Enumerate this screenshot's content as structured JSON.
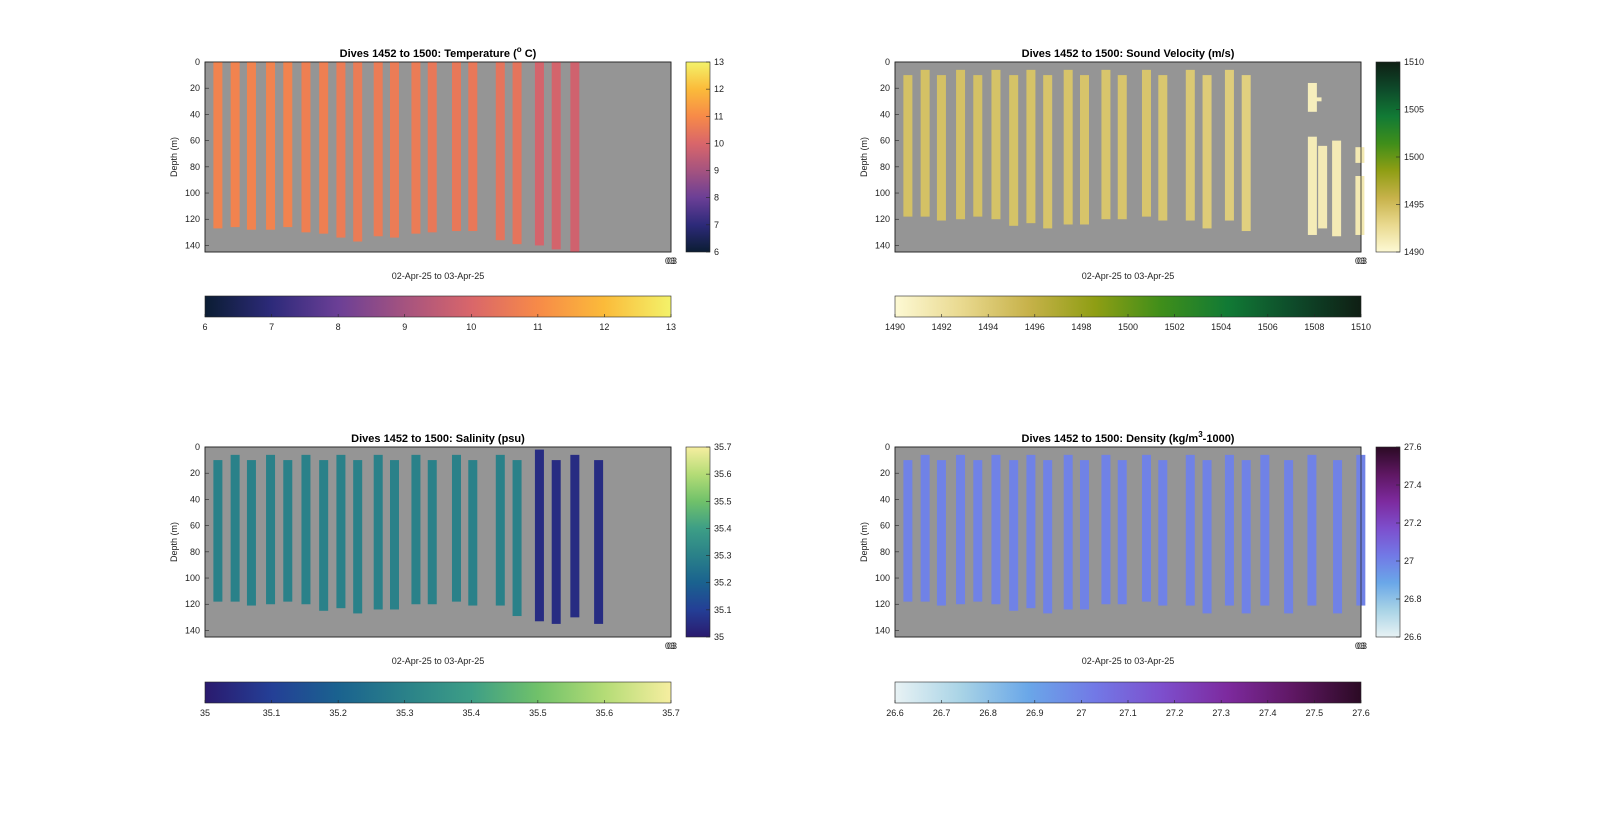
{
  "chart_data": [
    {
      "type": "heatmap",
      "title": "Dives 1452 to 1500: Temperature (",
      "title_sup": "o",
      "title_end": " C)",
      "xlabel": "02-Apr-25 to 03-Apr-25",
      "ylabel": "Depth (m)",
      "ylim": [
        0,
        145
      ],
      "yticks": [
        0,
        20,
        40,
        60,
        80,
        100,
        120,
        140
      ],
      "x_end_tick": "03",
      "cbar_right": {
        "ticks": [
          6,
          7,
          8,
          9,
          10,
          11,
          12,
          13
        ],
        "labels": [
          "6",
          "7",
          "8",
          "9",
          "10",
          "11",
          "12",
          "13"
        ]
      },
      "cbar_bottom": {
        "ticks": [
          6,
          7,
          8,
          9,
          10,
          11,
          12,
          13
        ],
        "labels": [
          "6",
          "7",
          "8",
          "9",
          "10",
          "11",
          "12",
          "13"
        ]
      },
      "clim": [
        6,
        13
      ],
      "colormap": [
        "#0b1d33",
        "#2d2a7a",
        "#6b3f96",
        "#a5537f",
        "#d9666a",
        "#f78a48",
        "#fbbb3a",
        "#f3f26a"
      ],
      "background_color": "#959595",
      "casts": [
        {
          "t": 0.018,
          "top": 0,
          "bottom": 127,
          "value": 10.8
        },
        {
          "t": 0.055,
          "top": 0,
          "bottom": 126,
          "value": 10.8
        },
        {
          "t": 0.09,
          "top": 0,
          "bottom": 128,
          "value": 10.8
        },
        {
          "t": 0.131,
          "top": 0,
          "bottom": 128,
          "value": 10.8
        },
        {
          "t": 0.168,
          "top": 0,
          "bottom": 126,
          "value": 10.8
        },
        {
          "t": 0.207,
          "top": 0,
          "bottom": 130,
          "value": 10.7
        },
        {
          "t": 0.245,
          "top": 0,
          "bottom": 131,
          "value": 10.7
        },
        {
          "t": 0.282,
          "top": 0,
          "bottom": 134,
          "value": 10.6
        },
        {
          "t": 0.318,
          "top": 0,
          "bottom": 137,
          "value": 10.6
        },
        {
          "t": 0.362,
          "top": 0,
          "bottom": 133,
          "value": 10.6
        },
        {
          "t": 0.397,
          "top": 0,
          "bottom": 134,
          "value": 10.6
        },
        {
          "t": 0.443,
          "top": 0,
          "bottom": 131,
          "value": 10.6
        },
        {
          "t": 0.478,
          "top": 0,
          "bottom": 130,
          "value": 10.5
        },
        {
          "t": 0.53,
          "top": 0,
          "bottom": 129,
          "value": 10.5
        },
        {
          "t": 0.565,
          "top": 0,
          "bottom": 129,
          "value": 10.5
        },
        {
          "t": 0.624,
          "top": 0,
          "bottom": 136,
          "value": 10.4
        },
        {
          "t": 0.66,
          "top": 0,
          "bottom": 139,
          "value": 10.4
        },
        {
          "t": 0.708,
          "top": 0,
          "bottom": 140,
          "value": 9.9
        },
        {
          "t": 0.744,
          "top": 0,
          "bottom": 143,
          "value": 9.9
        },
        {
          "t": 0.784,
          "top": 0,
          "bottom": 145,
          "value": 9.8
        }
      ]
    },
    {
      "type": "heatmap",
      "title": "Dives 1452 to 1500: Sound Velocity (m/s)",
      "xlabel": "02-Apr-25 to 03-Apr-25",
      "ylabel": "Depth (m)",
      "ylim": [
        0,
        145
      ],
      "yticks": [
        0,
        20,
        40,
        60,
        80,
        100,
        120,
        140
      ],
      "x_end_tick": "03",
      "cbar_right": {
        "ticks": [
          1490,
          1495,
          1500,
          1505,
          1510
        ],
        "labels": [
          "1490",
          "1495",
          "1500",
          "1505",
          "1510"
        ]
      },
      "cbar_bottom": {
        "ticks": [
          1490,
          1492,
          1494,
          1496,
          1498,
          1500,
          1502,
          1504,
          1506,
          1508,
          1510
        ],
        "labels": [
          "1490",
          "1492",
          "1494",
          "1496",
          "1498",
          "1500",
          "1502",
          "1504",
          "1506",
          "1508",
          "1510"
        ]
      },
      "clim": [
        1490,
        1510
      ],
      "colormap": [
        "#fdf9d4",
        "#e9d98f",
        "#c7b24a",
        "#8f9e14",
        "#3f8e1a",
        "#117a35",
        "#0e4a2a",
        "#0f1f14"
      ],
      "background_color": "#959595",
      "casts": [
        {
          "t": 0.018,
          "top": 10,
          "bottom": 118,
          "value": 1494.6
        },
        {
          "t": 0.055,
          "top": 6,
          "bottom": 118,
          "value": 1494.6
        },
        {
          "t": 0.09,
          "top": 10,
          "bottom": 121,
          "value": 1494.6
        },
        {
          "t": 0.131,
          "top": 6,
          "bottom": 120,
          "value": 1494.6
        },
        {
          "t": 0.168,
          "top": 10,
          "bottom": 118,
          "value": 1494.6
        },
        {
          "t": 0.207,
          "top": 6,
          "bottom": 120,
          "value": 1494.5
        },
        {
          "t": 0.245,
          "top": 10,
          "bottom": 125,
          "value": 1494.5
        },
        {
          "t": 0.282,
          "top": 6,
          "bottom": 123,
          "value": 1494.5
        },
        {
          "t": 0.318,
          "top": 10,
          "bottom": 127,
          "value": 1494.4
        },
        {
          "t": 0.362,
          "top": 6,
          "bottom": 124,
          "value": 1494.4
        },
        {
          "t": 0.397,
          "top": 10,
          "bottom": 124,
          "value": 1494.4
        },
        {
          "t": 0.443,
          "top": 6,
          "bottom": 120,
          "value": 1494.3
        },
        {
          "t": 0.478,
          "top": 10,
          "bottom": 120,
          "value": 1494.3
        },
        {
          "t": 0.53,
          "top": 6,
          "bottom": 118,
          "value": 1494.3
        },
        {
          "t": 0.565,
          "top": 10,
          "bottom": 121,
          "value": 1494.2
        },
        {
          "t": 0.624,
          "top": 6,
          "bottom": 121,
          "value": 1494.0
        },
        {
          "t": 0.66,
          "top": 10,
          "bottom": 127,
          "value": 1493.8
        },
        {
          "t": 0.708,
          "top": 6,
          "bottom": 121,
          "value": 1493.7
        },
        {
          "t": 0.744,
          "top": 10,
          "bottom": 129,
          "value": 1493.5
        }
      ],
      "fragments": [
        {
          "t": 0.886,
          "top": 16,
          "bottom": 38,
          "value": 1491.0
        },
        {
          "t": 0.896,
          "top": 27,
          "bottom": 30,
          "value": 1491.0
        },
        {
          "t": 0.886,
          "top": 57,
          "bottom": 132,
          "value": 1491.2
        },
        {
          "t": 0.908,
          "top": 64,
          "bottom": 127,
          "value": 1491.3
        },
        {
          "t": 0.938,
          "top": 60,
          "bottom": 133,
          "value": 1491.3
        },
        {
          "t": 0.988,
          "top": 65,
          "bottom": 77,
          "value": 1491.4
        },
        {
          "t": 0.988,
          "top": 87,
          "bottom": 132,
          "value": 1491.4
        }
      ]
    },
    {
      "type": "heatmap",
      "title": "Dives 1452 to 1500: Salinity (psu)",
      "xlabel": "02-Apr-25 to 03-Apr-25",
      "ylabel": "Depth (m)",
      "ylim": [
        0,
        145
      ],
      "yticks": [
        0,
        20,
        40,
        60,
        80,
        100,
        120,
        140
      ],
      "x_end_tick": "03",
      "cbar_right": {
        "ticks": [
          35,
          35.1,
          35.2,
          35.3,
          35.4,
          35.5,
          35.6,
          35.7
        ],
        "labels": [
          "35",
          "35.1",
          "35.2",
          "35.3",
          "35.4",
          "35.5",
          "35.6",
          "35.7"
        ]
      },
      "cbar_bottom": {
        "ticks": [
          35,
          35.1,
          35.2,
          35.3,
          35.4,
          35.5,
          35.6,
          35.7
        ],
        "labels": [
          "35",
          "35.1",
          "35.2",
          "35.3",
          "35.4",
          "35.5",
          "35.6",
          "35.7"
        ]
      },
      "clim": [
        35,
        35.7
      ],
      "colormap": [
        "#2a1a6e",
        "#243f96",
        "#1a628f",
        "#2a8189",
        "#3d9e86",
        "#70c16a",
        "#b4dc76",
        "#f6eea0"
      ],
      "background_color": "#959595",
      "casts": [
        {
          "t": 0.018,
          "top": 10,
          "bottom": 118,
          "value": 35.3
        },
        {
          "t": 0.055,
          "top": 6,
          "bottom": 118,
          "value": 35.3
        },
        {
          "t": 0.09,
          "top": 10,
          "bottom": 121,
          "value": 35.3
        },
        {
          "t": 0.131,
          "top": 6,
          "bottom": 120,
          "value": 35.3
        },
        {
          "t": 0.168,
          "top": 10,
          "bottom": 118,
          "value": 35.3
        },
        {
          "t": 0.207,
          "top": 6,
          "bottom": 120,
          "value": 35.3
        },
        {
          "t": 0.245,
          "top": 10,
          "bottom": 125,
          "value": 35.3
        },
        {
          "t": 0.282,
          "top": 6,
          "bottom": 123,
          "value": 35.3
        },
        {
          "t": 0.318,
          "top": 10,
          "bottom": 127,
          "value": 35.3
        },
        {
          "t": 0.362,
          "top": 6,
          "bottom": 124,
          "value": 35.3
        },
        {
          "t": 0.397,
          "top": 10,
          "bottom": 124,
          "value": 35.3
        },
        {
          "t": 0.443,
          "top": 6,
          "bottom": 120,
          "value": 35.3
        },
        {
          "t": 0.478,
          "top": 10,
          "bottom": 120,
          "value": 35.3
        },
        {
          "t": 0.53,
          "top": 6,
          "bottom": 118,
          "value": 35.3
        },
        {
          "t": 0.565,
          "top": 10,
          "bottom": 121,
          "value": 35.3
        },
        {
          "t": 0.624,
          "top": 6,
          "bottom": 121,
          "value": 35.3
        },
        {
          "t": 0.66,
          "top": 10,
          "bottom": 129,
          "value": 35.3
        },
        {
          "t": 0.708,
          "top": 2,
          "bottom": 133,
          "value": 35.05
        },
        {
          "t": 0.744,
          "top": 10,
          "bottom": 135,
          "value": 35.05
        },
        {
          "t": 0.784,
          "top": 6,
          "bottom": 130,
          "value": 35.05
        },
        {
          "t": 0.835,
          "top": 10,
          "bottom": 135,
          "value": 35.05
        }
      ]
    },
    {
      "type": "heatmap",
      "title": "Dives 1452 to 1500: Density (kg/m",
      "title_sup": "3",
      "title_end": "-1000)",
      "xlabel": "02-Apr-25 to 03-Apr-25",
      "ylabel": "Depth (m)",
      "ylim": [
        0,
        145
      ],
      "yticks": [
        0,
        20,
        40,
        60,
        80,
        100,
        120,
        140
      ],
      "x_end_tick": "03",
      "cbar_right": {
        "ticks": [
          26.6,
          26.8,
          27,
          27.2,
          27.4,
          27.6
        ],
        "labels": [
          "26.6",
          "26.8",
          "27",
          "27.2",
          "27.4",
          "27.6"
        ]
      },
      "cbar_bottom": {
        "ticks": [
          26.6,
          26.7,
          26.8,
          26.9,
          27,
          27.1,
          27.2,
          27.3,
          27.4,
          27.5,
          27.6
        ],
        "labels": [
          "26.6",
          "26.7",
          "26.8",
          "26.9",
          "27",
          "27.1",
          "27.2",
          "27.3",
          "27.4",
          "27.5",
          "27.6"
        ]
      },
      "clim": [
        26.6,
        27.6
      ],
      "colormap": [
        "#e8f2f4",
        "#a8d3e6",
        "#6aa7e8",
        "#7279e6",
        "#7d4fcd",
        "#7d2a9e",
        "#5e1762",
        "#2b0a24"
      ],
      "background_color": "#959595",
      "casts": [
        {
          "t": 0.018,
          "top": 10,
          "bottom": 118,
          "value": 27.0
        },
        {
          "t": 0.055,
          "top": 6,
          "bottom": 118,
          "value": 27.0
        },
        {
          "t": 0.09,
          "top": 10,
          "bottom": 121,
          "value": 27.0
        },
        {
          "t": 0.131,
          "top": 6,
          "bottom": 120,
          "value": 27.0
        },
        {
          "t": 0.168,
          "top": 10,
          "bottom": 118,
          "value": 27.0
        },
        {
          "t": 0.207,
          "top": 6,
          "bottom": 120,
          "value": 27.0
        },
        {
          "t": 0.245,
          "top": 10,
          "bottom": 125,
          "value": 27.0
        },
        {
          "t": 0.282,
          "top": 6,
          "bottom": 123,
          "value": 27.0
        },
        {
          "t": 0.318,
          "top": 10,
          "bottom": 127,
          "value": 27.0
        },
        {
          "t": 0.362,
          "top": 6,
          "bottom": 124,
          "value": 27.0
        },
        {
          "t": 0.397,
          "top": 10,
          "bottom": 124,
          "value": 27.0
        },
        {
          "t": 0.443,
          "top": 6,
          "bottom": 120,
          "value": 27.0
        },
        {
          "t": 0.478,
          "top": 10,
          "bottom": 120,
          "value": 27.0
        },
        {
          "t": 0.53,
          "top": 6,
          "bottom": 118,
          "value": 27.0
        },
        {
          "t": 0.565,
          "top": 10,
          "bottom": 121,
          "value": 27.0
        },
        {
          "t": 0.624,
          "top": 6,
          "bottom": 121,
          "value": 27.0
        },
        {
          "t": 0.66,
          "top": 10,
          "bottom": 127,
          "value": 27.0
        },
        {
          "t": 0.708,
          "top": 6,
          "bottom": 121,
          "value": 27.0
        },
        {
          "t": 0.744,
          "top": 10,
          "bottom": 127,
          "value": 27.0
        },
        {
          "t": 0.784,
          "top": 6,
          "bottom": 121,
          "value": 27.0
        },
        {
          "t": 0.835,
          "top": 10,
          "bottom": 127,
          "value": 27.0
        },
        {
          "t": 0.885,
          "top": 6,
          "bottom": 121,
          "value": 27.0
        },
        {
          "t": 0.94,
          "top": 10,
          "bottom": 127,
          "value": 27.0
        },
        {
          "t": 0.99,
          "top": 6,
          "bottom": 121,
          "value": 27.0
        }
      ]
    }
  ]
}
